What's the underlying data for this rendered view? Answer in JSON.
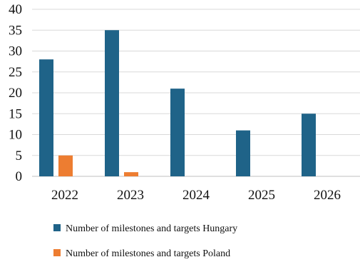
{
  "chart_data": {
    "type": "bar",
    "categories": [
      "2022",
      "2023",
      "2024",
      "2025",
      "2026"
    ],
    "series": [
      {
        "name": "Number of milestones and targets Hungary",
        "values": [
          28,
          35,
          21,
          11,
          15
        ],
        "color": "#1f6388"
      },
      {
        "name": "Number of milestones and targets Poland",
        "values": [
          5,
          1,
          0,
          0,
          0
        ],
        "color": "#ed7d31"
      }
    ],
    "ylim": [
      0,
      40
    ],
    "yticks": [
      "0",
      "5",
      "10",
      "15",
      "20",
      "25",
      "30",
      "35",
      "40"
    ],
    "grid": true,
    "legend_position": "bottom",
    "title": "",
    "xlabel": "",
    "ylabel": ""
  }
}
